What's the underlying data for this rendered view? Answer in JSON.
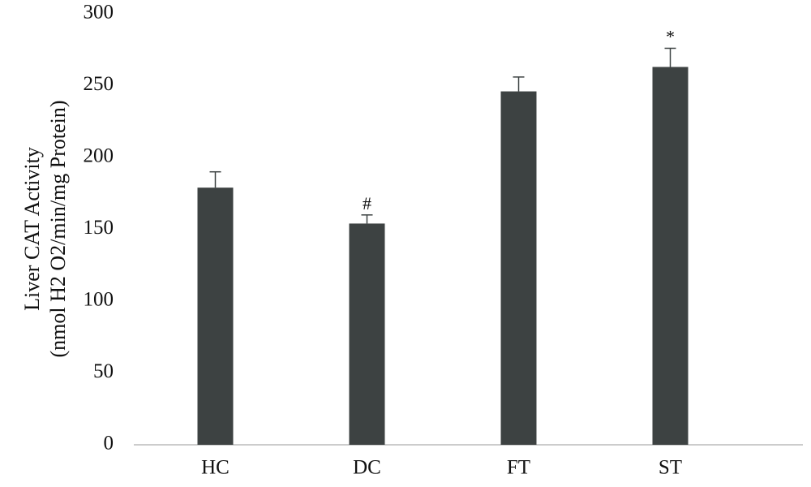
{
  "chart_data": {
    "type": "bar",
    "y_label_lines": [
      "Liver CAT Activity",
      "(nmol H2 O2/min/mg Protein)"
    ],
    "categories": [
      "HC",
      "DC",
      "FT",
      "ST"
    ],
    "values": [
      179,
      154,
      246,
      263
    ],
    "errors": [
      11,
      6,
      10,
      13
    ],
    "value_annotations": [
      null,
      "#",
      null,
      "*"
    ],
    "color": "#3d4242",
    "ylim": [
      0,
      300
    ],
    "yticks": [
      0,
      50,
      100,
      150,
      200,
      250,
      300
    ],
    "grid": false
  }
}
